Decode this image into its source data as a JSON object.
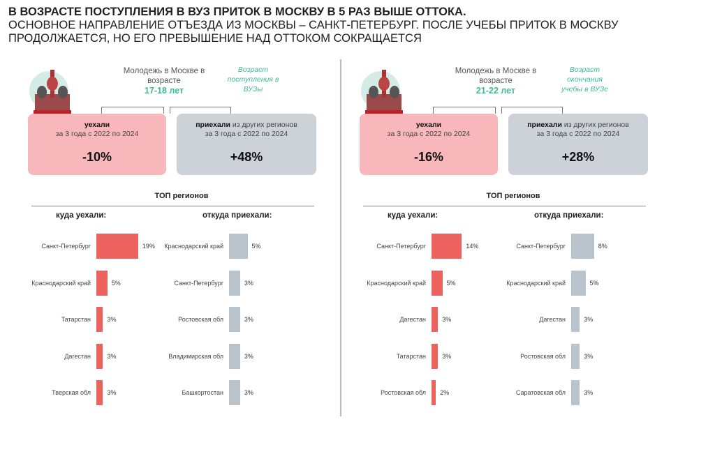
{
  "title": {
    "line1": "В возрасте поступления в ВУЗ приток в Москву в 5 раз выше оттока.",
    "line2": "Основное направление отъезда из Москвы – Санкт-Петербург. После учебы приток в Москву",
    "line3": "продолжается, но его превышение над оттоком сокращается"
  },
  "colors": {
    "outflow": "#ec625f",
    "inflow": "#b9c3cc",
    "accent": "#3dbb96"
  },
  "panels": [
    {
      "youth": "Молодежь в Москве в возрасте",
      "age": "17-18 лет",
      "note": "Возраст поступления в ВУЗы",
      "out_box": {
        "bold": "уехали",
        "sub": "за 3 года с 2022 по 2024",
        "value": "-10%"
      },
      "in_box": {
        "bold": "приехали",
        "rest": " из других регионов",
        "sub": "за 3 года с 2022 по 2024",
        "value": "+48%"
      },
      "top": "ТОП регионов",
      "out_head": "куда уехали:",
      "in_head": "откуда приехали:"
    },
    {
      "youth": "Молодежь в Москве в возрасте",
      "age": "21-22 лет",
      "note": "Возраст окончания учебы в ВУЗе",
      "out_box": {
        "bold": "уехали",
        "sub": "за 3 года с 2022 по 2024",
        "value": "-16%"
      },
      "in_box": {
        "bold": "приехали",
        "rest": " из других регионов",
        "sub": "за 3 года с 2022 по 2024",
        "value": "+28%"
      },
      "top": "ТОП регионов",
      "out_head": "куда уехали:",
      "in_head": "откуда приехали:"
    }
  ],
  "chart_data": [
    {
      "type": "bar",
      "orientation": "horizontal",
      "title": "куда уехали:",
      "categories": [
        "Санкт-Петербург",
        "Краснодарский край",
        "Татарстан",
        "Дагестан",
        "Тверская обл"
      ],
      "values": [
        19,
        5,
        3,
        3,
        3
      ],
      "unit": "%"
    },
    {
      "type": "bar",
      "orientation": "horizontal",
      "title": "откуда приехали:",
      "categories": [
        "Краснодарский край",
        "Санкт-Петербург",
        "Ростовская обл",
        "Владимирская обл",
        "Башкортостан"
      ],
      "values": [
        5,
        3,
        3,
        3,
        3
      ],
      "unit": "%"
    },
    {
      "type": "bar",
      "orientation": "horizontal",
      "title": "куда уехали:",
      "categories": [
        "Санкт-Петербург",
        "Краснодарский край",
        "Дагестан",
        "Татарстан",
        "Ростовская обл"
      ],
      "values": [
        14,
        5,
        3,
        3,
        2
      ],
      "unit": "%"
    },
    {
      "type": "bar",
      "orientation": "horizontal",
      "title": "откуда приехали:",
      "categories": [
        "Санкт-Петербург",
        "Краснодарский край",
        "Дагестан",
        "Ростовская обл",
        "Саратовская обл"
      ],
      "values": [
        8,
        5,
        3,
        3,
        3
      ],
      "unit": "%"
    }
  ]
}
